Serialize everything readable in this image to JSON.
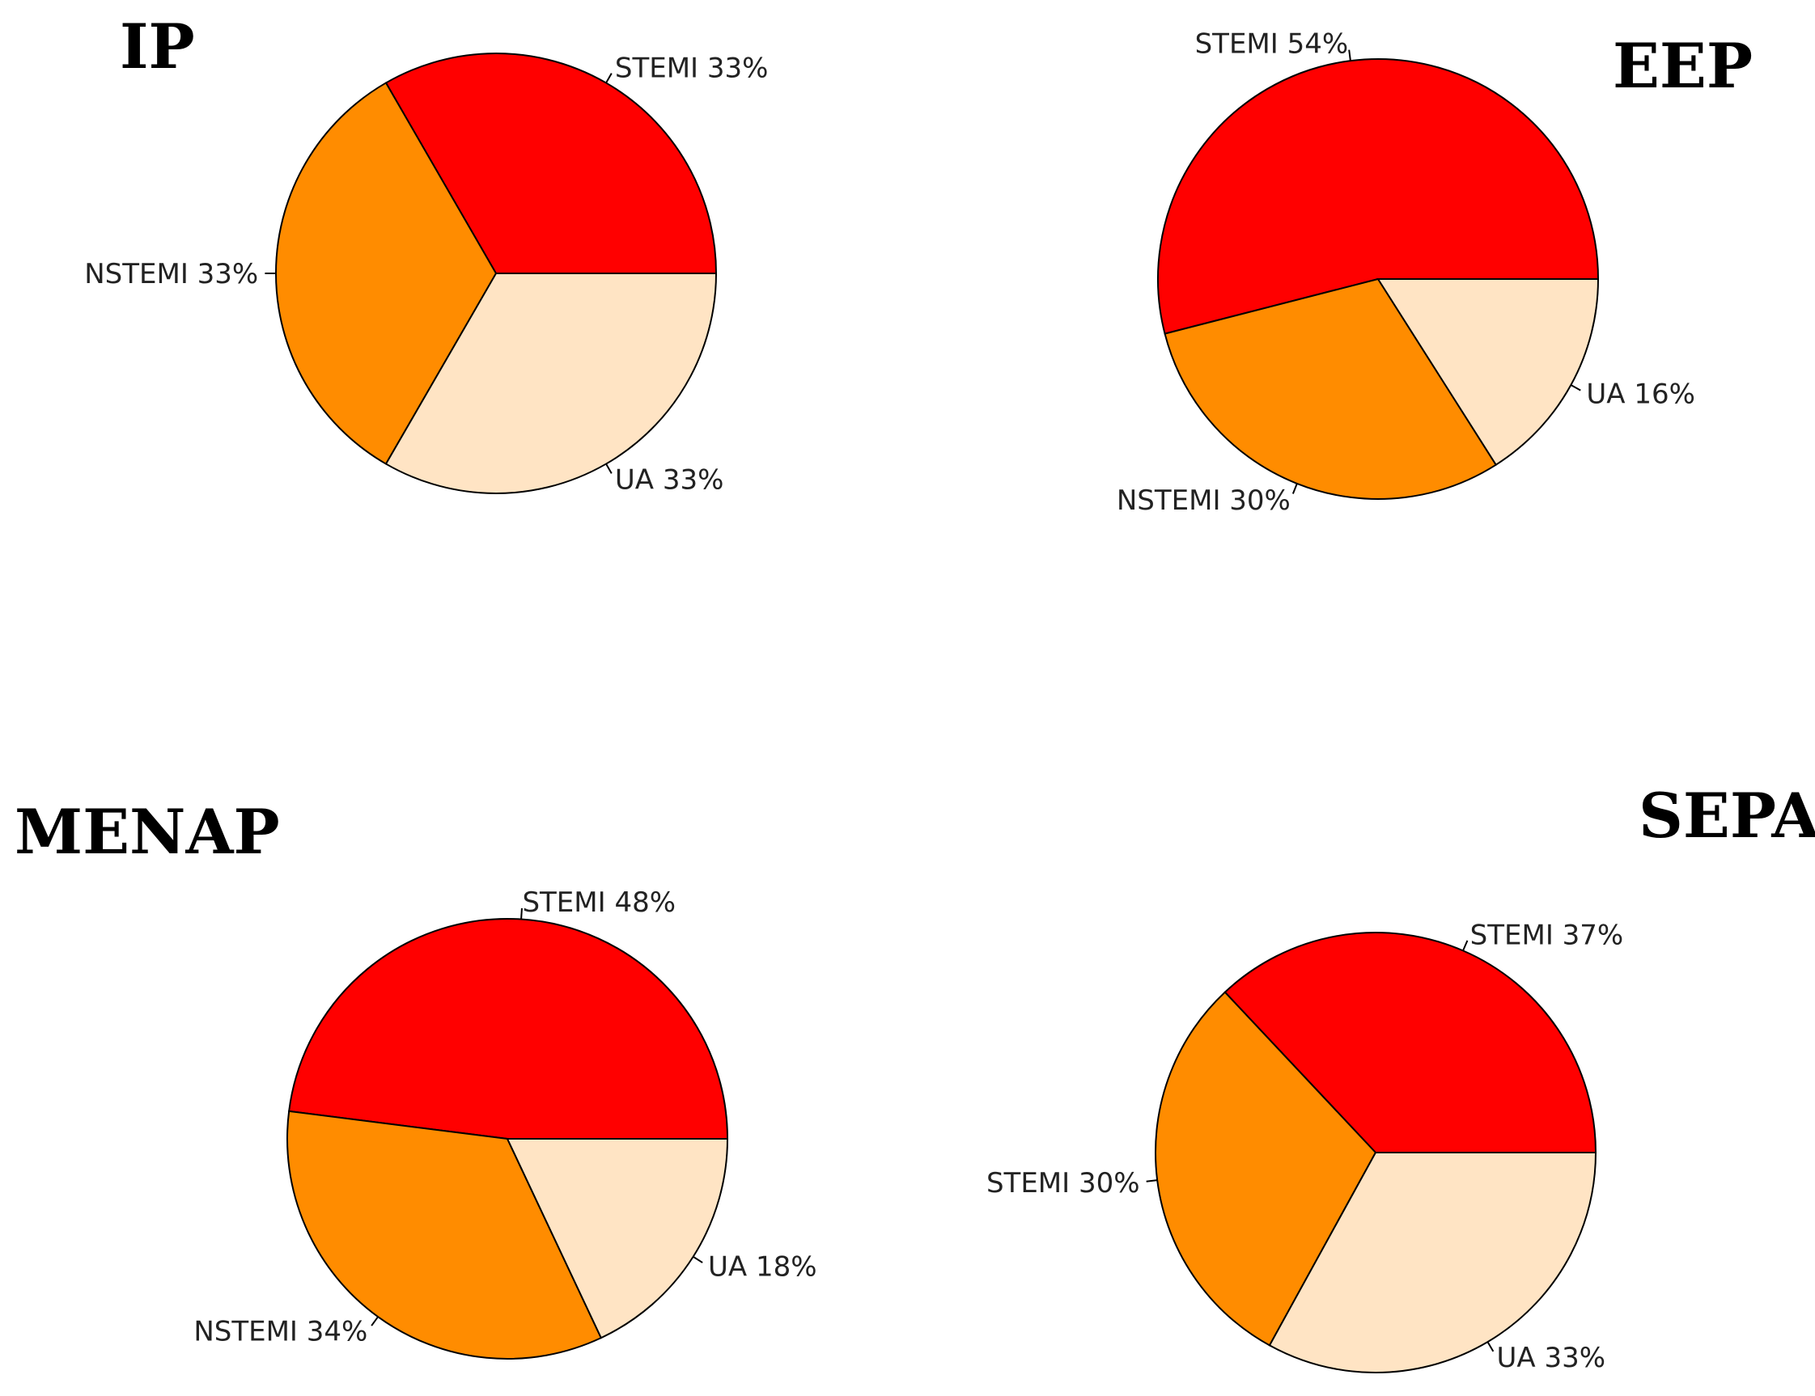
{
  "colors": {
    "slice_1": "#ff0000",
    "slice_2": "#ff8c00",
    "slice_3": "#ffe4c4"
  },
  "chart_data": [
    {
      "type": "pie",
      "title": "IP",
      "slices": [
        {
          "label": "STEMI 33%",
          "value": 33.3
        },
        {
          "label": "NSTEMI 33%",
          "value": 33.3
        },
        {
          "label": "UA 33%",
          "value": 33.3
        }
      ]
    },
    {
      "type": "pie",
      "title": "EEP",
      "slices": [
        {
          "label": "STEMI 54%",
          "value": 54
        },
        {
          "label": "NSTEMI 30%",
          "value": 30
        },
        {
          "label": "UA 16%",
          "value": 16
        }
      ]
    },
    {
      "type": "pie",
      "title": "MENAP",
      "slices": [
        {
          "label": "STEMI 48%",
          "value": 48
        },
        {
          "label": "NSTEMI 34%",
          "value": 34
        },
        {
          "label": "UA 18%",
          "value": 18
        }
      ]
    },
    {
      "type": "pie",
      "title": "SEPA",
      "slices": [
        {
          "label": "STEMI 37%",
          "value": 37
        },
        {
          "label": "STEMI 30%",
          "value": 30
        },
        {
          "label": "UA 33%",
          "value": 33
        }
      ]
    }
  ]
}
